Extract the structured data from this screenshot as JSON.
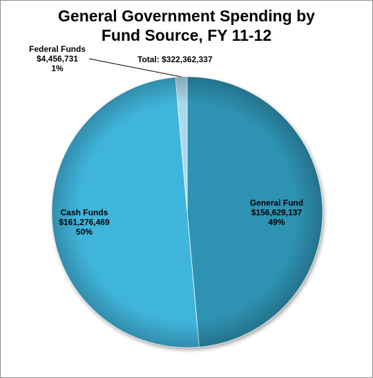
{
  "chart_data": {
    "type": "pie",
    "title": "General Government Spending by Fund Source, FY 11-12",
    "title_lines": [
      "General Government Spending by",
      "Fund Source, FY 11-12"
    ],
    "total_label": "Total: $322,362,337",
    "slices": [
      {
        "name": "General Fund",
        "value": 156629137,
        "value_label": "$156,629,137",
        "percent_label": "49%",
        "color": "#2f93b3"
      },
      {
        "name": "Cash Funds",
        "value": 161276469,
        "value_label": "$161,276,469",
        "percent_label": "50%",
        "color": "#3fb5dc"
      },
      {
        "name": "Federal Funds",
        "value": 4456731,
        "value_label": "$4,456,731",
        "percent_label": "1%",
        "color": "#a9d9ec"
      }
    ],
    "label_placement": [
      "inside",
      "inside",
      "outside-top-left"
    ]
  }
}
